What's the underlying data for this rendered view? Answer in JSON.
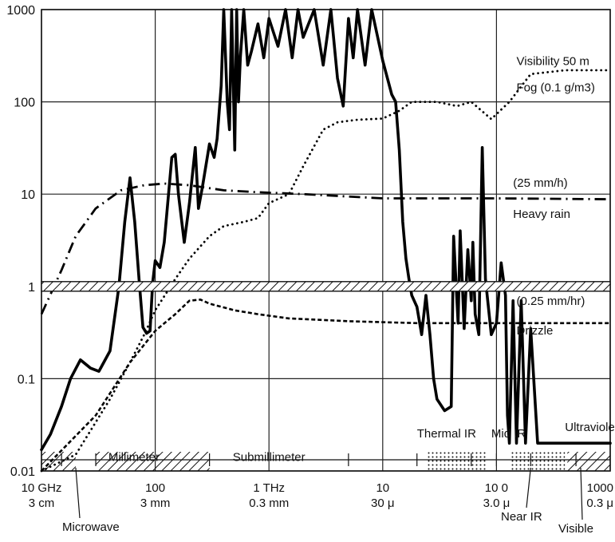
{
  "chart_data": {
    "type": "line",
    "x_scale": "log",
    "y_scale": "log",
    "xlim": [
      10,
      1000000
    ],
    "ylim": [
      0.01,
      1000
    ],
    "grid": true,
    "y_ticks": [
      {
        "value": 1000,
        "label": "1000"
      },
      {
        "value": 100,
        "label": "100"
      },
      {
        "value": 10,
        "label": "10"
      },
      {
        "value": 1,
        "label": "1"
      },
      {
        "value": 0.1,
        "label": "0.1"
      },
      {
        "value": 0.01,
        "label": "0.01"
      }
    ],
    "x_ticks": [
      {
        "value": 10,
        "line1": "10 GHz",
        "line2": "3 cm"
      },
      {
        "value": 100,
        "line1": "100",
        "line2": "3 mm"
      },
      {
        "value": 1000,
        "line1": "1 THz",
        "line2": "0.3 mm"
      },
      {
        "value": 10000,
        "line1": "10",
        "line2": "30 μ"
      },
      {
        "value": 100000,
        "line1": "10 0",
        "line2": "3.0 μ"
      },
      {
        "value": 1000000,
        "line1": "1000",
        "line2": "0.3 μ"
      }
    ],
    "series": [
      {
        "style": "solid",
        "points": [
          [
            10,
            0.017
          ],
          [
            12,
            0.025
          ],
          [
            15,
            0.05
          ],
          [
            18,
            0.1
          ],
          [
            22,
            0.16
          ],
          [
            27,
            0.13
          ],
          [
            32,
            0.12
          ],
          [
            40,
            0.2
          ],
          [
            48,
            1
          ],
          [
            54,
            5
          ],
          [
            60,
            15
          ],
          [
            66,
            5
          ],
          [
            72,
            1.2
          ],
          [
            78,
            0.36
          ],
          [
            84,
            0.31
          ],
          [
            90,
            0.33
          ],
          [
            95,
            1.1
          ],
          [
            100,
            1.9
          ],
          [
            110,
            1.6
          ],
          [
            120,
            3
          ],
          [
            140,
            25
          ],
          [
            150,
            27
          ],
          [
            160,
            10
          ],
          [
            180,
            3
          ],
          [
            200,
            8
          ],
          [
            225,
            32
          ],
          [
            240,
            7
          ],
          [
            260,
            12
          ],
          [
            300,
            35
          ],
          [
            330,
            25
          ],
          [
            350,
            40
          ],
          [
            380,
            150
          ],
          [
            400,
            1000
          ],
          [
            430,
            100
          ],
          [
            450,
            50
          ],
          [
            470,
            1000
          ],
          [
            500,
            30
          ],
          [
            520,
            1000
          ],
          [
            540,
            100
          ],
          [
            560,
            300
          ],
          [
            600,
            1000
          ],
          [
            650,
            250
          ],
          [
            700,
            350
          ],
          [
            800,
            700
          ],
          [
            900,
            300
          ],
          [
            1000,
            800
          ],
          [
            1200,
            400
          ],
          [
            1400,
            1000
          ],
          [
            1600,
            300
          ],
          [
            1800,
            1000
          ],
          [
            2000,
            500
          ],
          [
            2500,
            1000
          ],
          [
            3000,
            250
          ],
          [
            3500,
            1000
          ],
          [
            4000,
            180
          ],
          [
            4500,
            90
          ],
          [
            5000,
            800
          ],
          [
            5500,
            300
          ],
          [
            6000,
            1000
          ],
          [
            7000,
            250
          ],
          [
            8000,
            1000
          ],
          [
            10000,
            280
          ],
          [
            12000,
            120
          ],
          [
            13000,
            100
          ],
          [
            14000,
            30
          ],
          [
            15000,
            5
          ],
          [
            16000,
            2
          ],
          [
            17000,
            1.2
          ],
          [
            18000,
            0.8
          ],
          [
            20000,
            0.6
          ],
          [
            22000,
            0.3
          ],
          [
            24000,
            0.8
          ],
          [
            26000,
            0.3
          ],
          [
            28000,
            0.1
          ],
          [
            30000,
            0.06
          ],
          [
            35000,
            0.045
          ],
          [
            40000,
            0.05
          ],
          [
            42000,
            3.5
          ],
          [
            46000,
            0.4
          ],
          [
            48000,
            4
          ],
          [
            52000,
            0.35
          ],
          [
            56000,
            2.5
          ],
          [
            60000,
            0.7
          ],
          [
            62000,
            3
          ],
          [
            65000,
            0.5
          ],
          [
            70000,
            0.3
          ],
          [
            75000,
            32
          ],
          [
            80000,
            1.2
          ],
          [
            90000,
            0.3
          ],
          [
            100000,
            0.4
          ],
          [
            110000,
            1.8
          ],
          [
            120000,
            0.8
          ],
          [
            125000,
            0.04
          ],
          [
            130000,
            0.02
          ],
          [
            140000,
            0.7
          ],
          [
            150000,
            0.02
          ],
          [
            165000,
            0.7
          ],
          [
            180000,
            0.02
          ],
          [
            200000,
            0.35
          ],
          [
            230000,
            0.02
          ],
          [
            300000,
            0.02
          ],
          [
            1000000,
            0.02
          ]
        ]
      },
      {
        "style": "dotted",
        "points": [
          [
            10,
            0.004
          ],
          [
            20,
            0.015
          ],
          [
            40,
            0.06
          ],
          [
            60,
            0.15
          ],
          [
            80,
            0.3
          ],
          [
            100,
            0.55
          ],
          [
            150,
            1.2
          ],
          [
            200,
            2
          ],
          [
            300,
            3.5
          ],
          [
            400,
            4.5
          ],
          [
            600,
            5
          ],
          [
            800,
            5.5
          ],
          [
            1000,
            8
          ],
          [
            1500,
            10
          ],
          [
            2000,
            20
          ],
          [
            3000,
            50
          ],
          [
            4000,
            60
          ],
          [
            6000,
            64
          ],
          [
            10000,
            66
          ],
          [
            14000,
            80
          ],
          [
            18000,
            100
          ],
          [
            30000,
            100
          ],
          [
            45000,
            90
          ],
          [
            60000,
            100
          ],
          [
            90000,
            65
          ],
          [
            130000,
            100
          ],
          [
            200000,
            200
          ],
          [
            400000,
            220
          ],
          [
            1000000,
            220
          ]
        ]
      },
      {
        "style": "dashdot",
        "points": [
          [
            10,
            0.5
          ],
          [
            15,
            1.5
          ],
          [
            20,
            3.5
          ],
          [
            30,
            7
          ],
          [
            50,
            11
          ],
          [
            80,
            12.5
          ],
          [
            120,
            13
          ],
          [
            200,
            12.5
          ],
          [
            400,
            11
          ],
          [
            800,
            10.5
          ],
          [
            2000,
            10
          ],
          [
            10000,
            9
          ],
          [
            100000,
            9
          ],
          [
            1000000,
            8.8
          ]
        ]
      },
      {
        "style": "dashed",
        "points": [
          [
            10,
            0.007
          ],
          [
            30,
            0.04
          ],
          [
            60,
            0.15
          ],
          [
            100,
            0.33
          ],
          [
            150,
            0.5
          ],
          [
            200,
            0.7
          ],
          [
            250,
            0.72
          ],
          [
            300,
            0.65
          ],
          [
            500,
            0.55
          ],
          [
            800,
            0.5
          ],
          [
            1500,
            0.45
          ],
          [
            5000,
            0.42
          ],
          [
            20000,
            0.4
          ],
          [
            100000,
            0.4
          ],
          [
            1000000,
            0.4
          ]
        ]
      }
    ],
    "annotations": [
      {
        "text": "Visibility 50 m",
        "x": 150000,
        "y": 250
      },
      {
        "text": "Fog (0.1 g/m3)",
        "x": 150000,
        "y": 130
      },
      {
        "text": "(25 mm/h)",
        "x": 140000,
        "y": 12
      },
      {
        "text": "Heavy rain",
        "x": 140000,
        "y": 5.5
      },
      {
        "text": "(0.25 mm/hr)",
        "x": 150000,
        "y": 0.63
      },
      {
        "text": "Drizzle",
        "x": 150000,
        "y": 0.3
      },
      {
        "text": "Thermal IR",
        "x": 20000,
        "y": 0.023
      },
      {
        "text": "Mid IR",
        "x": 90000,
        "y": 0.023
      },
      {
        "text": "Ultraviolet",
        "x": 400000,
        "y": 0.027
      },
      {
        "text": "Millimeter",
        "x": 65,
        "y": 0.0128
      },
      {
        "text": "Submillimeter",
        "x": 1000,
        "y": 0.0128
      }
    ],
    "below_axis_labels": [
      {
        "text": "Microwave",
        "x": 20
      },
      {
        "text": "Near IR",
        "x": 200000
      },
      {
        "text": "Visible",
        "x": 550000
      }
    ],
    "bands": [
      {
        "name": "Microwave",
        "from": 10,
        "to": 20,
        "pattern": "hatch"
      },
      {
        "name": "Millimeter",
        "from": 30,
        "to": 300,
        "pattern": "hatch"
      },
      {
        "name": "Thermal IR",
        "from": 25000,
        "to": 80000,
        "pattern": "dots"
      },
      {
        "name": "Near IR",
        "from": 130000,
        "to": 400000,
        "pattern": "dots"
      },
      {
        "name": "Visible",
        "from": 420000,
        "to": 1000000,
        "pattern": "hatch"
      }
    ],
    "axis_break_y": 1
  }
}
